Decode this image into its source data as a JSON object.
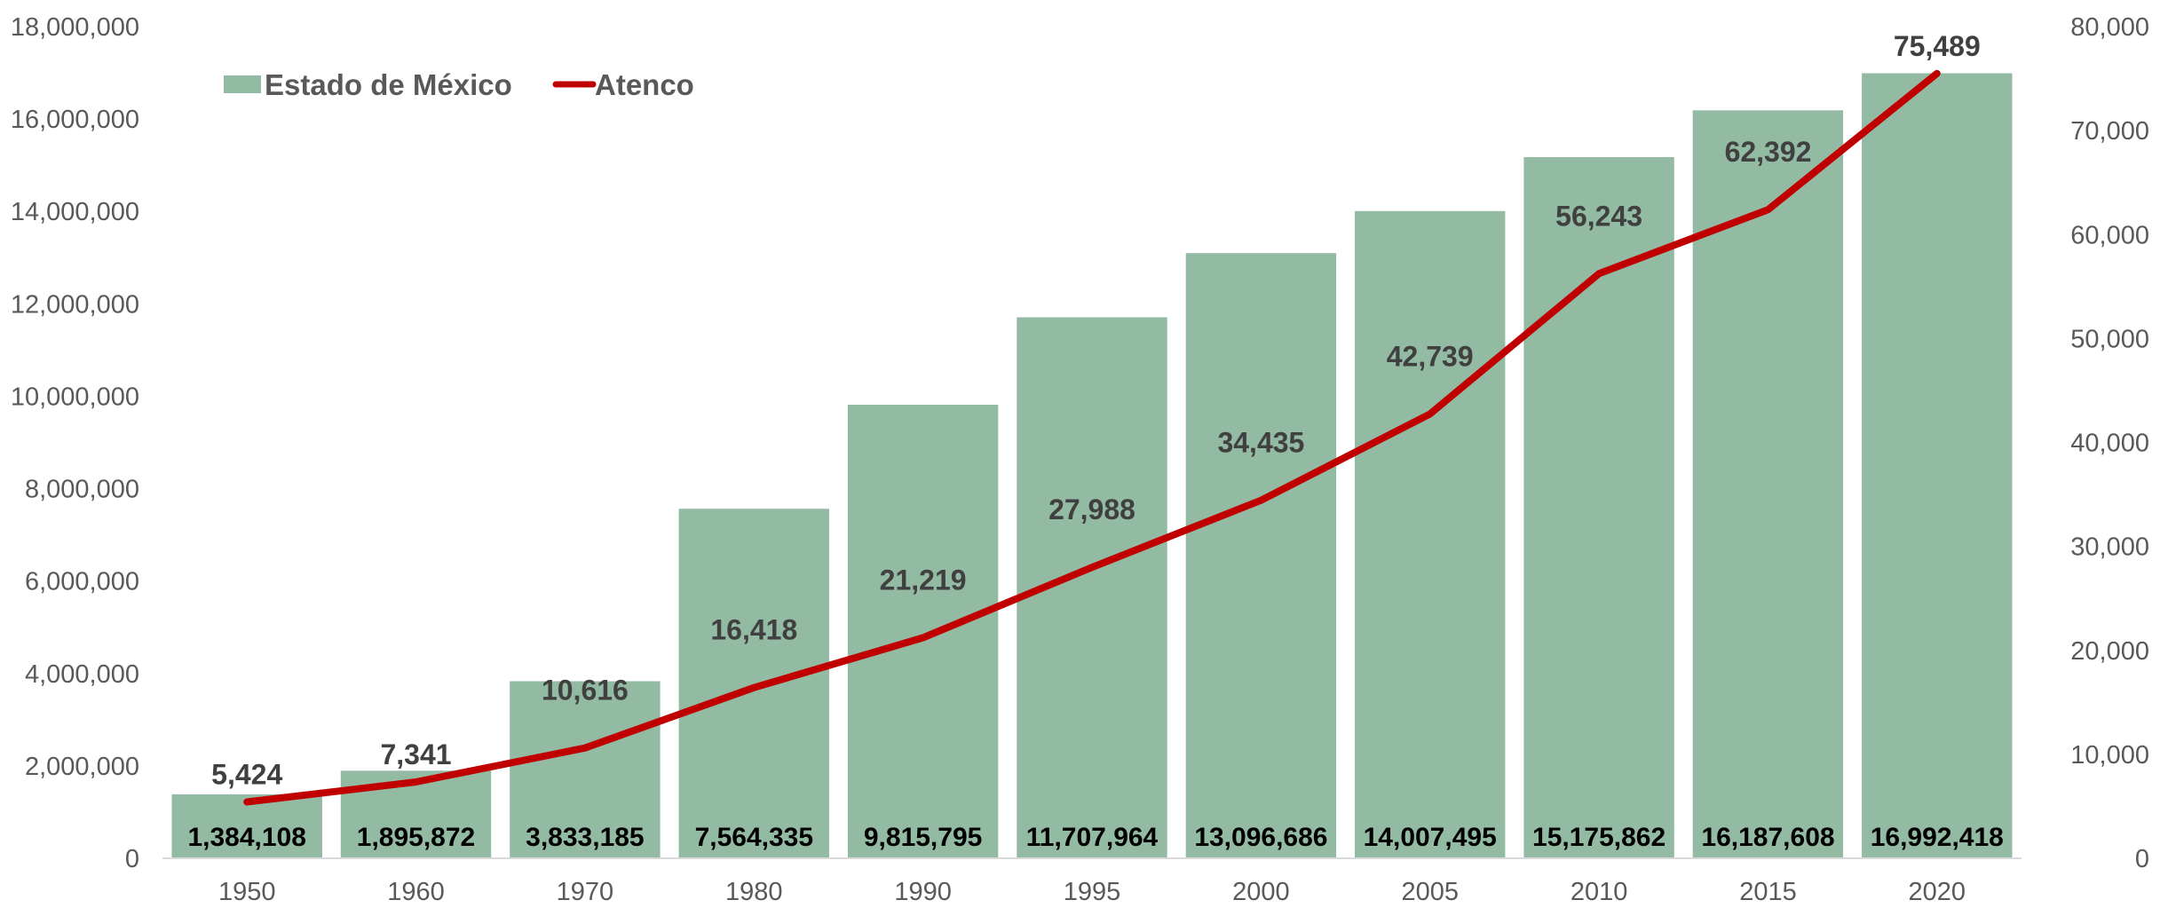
{
  "chart_data": {
    "type": "bar",
    "categories": [
      "1950",
      "1960",
      "1970",
      "1980",
      "1990",
      "1995",
      "2000",
      "2005",
      "2010",
      "2015",
      "2020"
    ],
    "series": [
      {
        "name": "Estado de México",
        "type": "bar",
        "axis": "left",
        "color": "#93BAA3",
        "values": [
          1384108,
          1895872,
          3833185,
          7564335,
          9815795,
          11707964,
          13096686,
          14007495,
          15175862,
          16187608,
          16992418
        ],
        "value_labels": [
          "1,384,108",
          "1,895,872",
          "3,833,185",
          "7,564,335",
          "9,815,795",
          "11,707,964",
          "13,096,686",
          "14,007,495",
          "15,175,862",
          "16,187,608",
          "16,992,418"
        ]
      },
      {
        "name": "Atenco",
        "type": "line",
        "axis": "right",
        "color": "#C00000",
        "values": [
          5424,
          7341,
          10616,
          16418,
          21219,
          27988,
          34435,
          42739,
          56243,
          62392,
          75489
        ],
        "value_labels": [
          "5,424",
          "7,341",
          "10,616",
          "16,418",
          "21,219",
          "27,988",
          "34,435",
          "42,739",
          "56,243",
          "62,392",
          "75,489"
        ]
      }
    ],
    "left_axis": {
      "min": 0,
      "max": 18000000,
      "ticks": [
        0,
        2000000,
        4000000,
        6000000,
        8000000,
        10000000,
        12000000,
        14000000,
        16000000,
        18000000
      ],
      "tick_labels": [
        "0",
        "2,000,000",
        "4,000,000",
        "6,000,000",
        "8,000,000",
        "10,000,000",
        "12,000,000",
        "14,000,000",
        "16,000,000",
        "18,000,000"
      ]
    },
    "right_axis": {
      "min": 0,
      "max": 80000,
      "ticks": [
        0,
        10000,
        20000,
        30000,
        40000,
        50000,
        60000,
        70000,
        80000
      ],
      "tick_labels": [
        "0",
        "10,000",
        "20,000",
        "30,000",
        "40,000",
        "50,000",
        "60,000",
        "70,000",
        "80,000"
      ]
    },
    "title": "",
    "xlabel": "",
    "ylabel": "",
    "grid": false,
    "legend": {
      "placement": "top-left",
      "entries": [
        "Estado de México",
        "Atenco"
      ]
    }
  }
}
